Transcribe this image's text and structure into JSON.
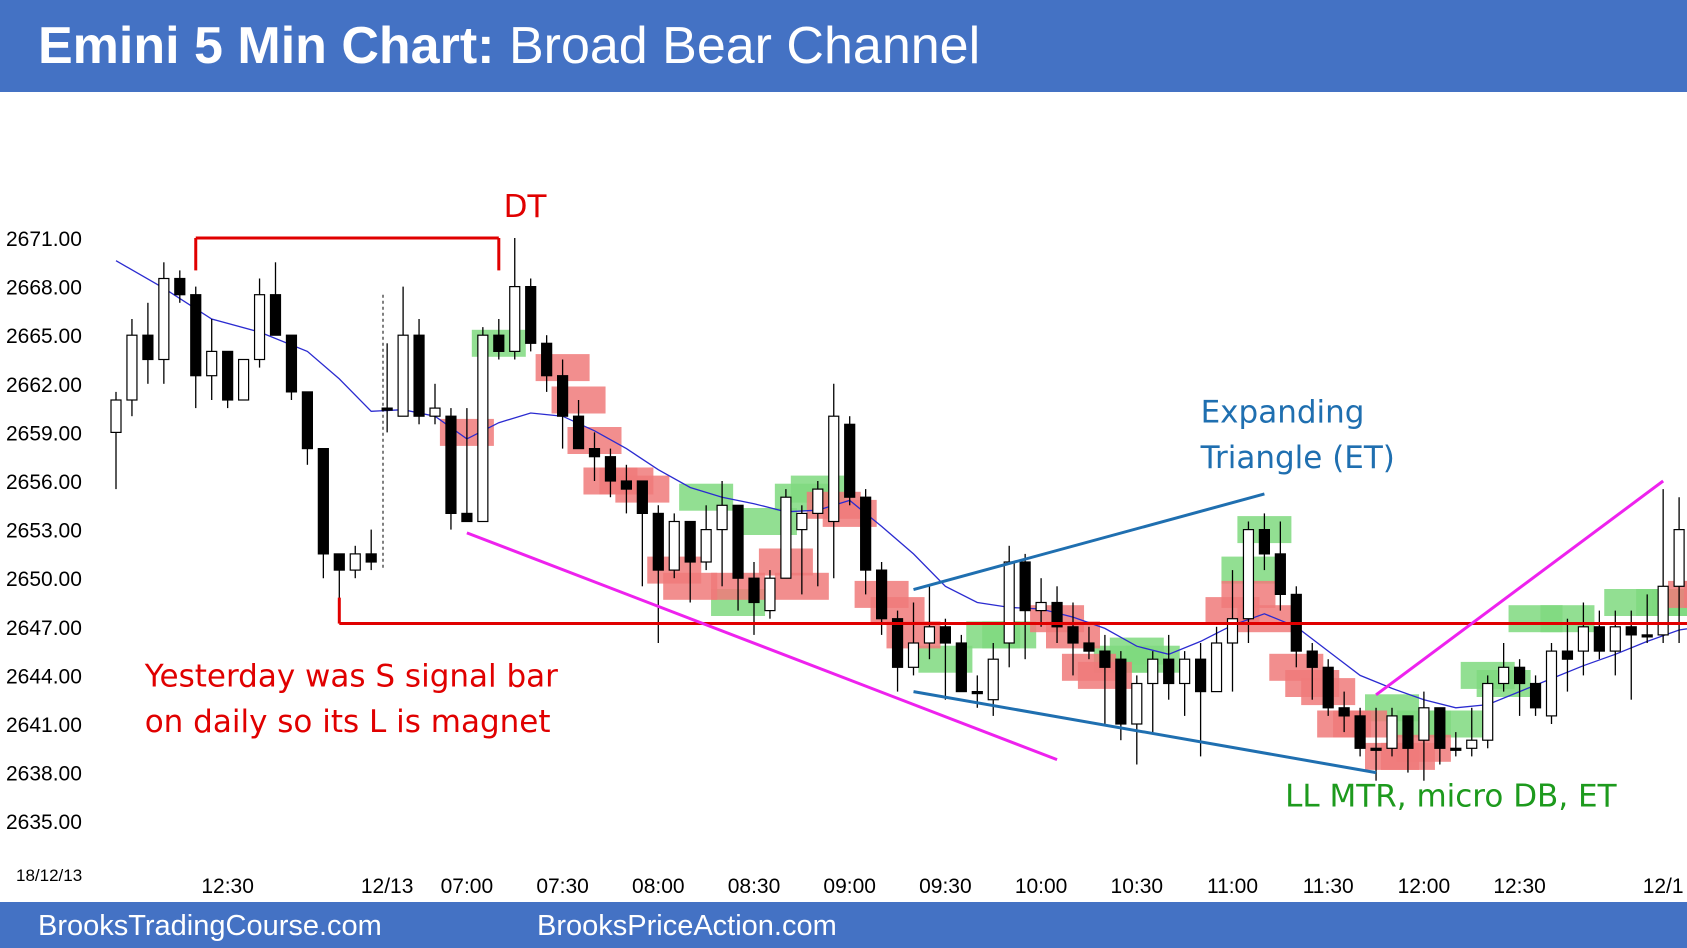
{
  "header": {
    "title_bold": "Emini 5 Min Chart:",
    "title_rest": "Broad Bear Channel"
  },
  "footer": {
    "left_link": "BrooksTradingCourse.com",
    "right_link": "BrooksPriceAction.com"
  },
  "colors": {
    "header_bg": "#4472c4",
    "bull_signal": "#7fd97f",
    "bear_signal": "#f07a7a",
    "support_line": "#e00000",
    "wedge_line": "#ee22ee",
    "triangle_line": "#1f6fb0",
    "ema_line": "#2b2bd0"
  },
  "chart_data": {
    "type": "candlestick",
    "title": "Emini 5 Min Chart: Broad Bear Channel",
    "date_stamp": "18/12/13",
    "ylim": [
      2633.5,
      2675.5
    ],
    "y_ticks": [
      "2671.00",
      "2668.00",
      "2665.00",
      "2662.00",
      "2659.00",
      "2656.00",
      "2653.00",
      "2650.00",
      "2647.00",
      "2644.00",
      "2641.00",
      "2638.00",
      "2635.00"
    ],
    "x_ticks": [
      {
        "bar": 7,
        "label": "12:30"
      },
      {
        "bar": 17,
        "label": "12/13"
      },
      {
        "bar": 22,
        "label": "07:00"
      },
      {
        "bar": 28,
        "label": "07:30"
      },
      {
        "bar": 34,
        "label": "08:00"
      },
      {
        "bar": 40,
        "label": "08:30"
      },
      {
        "bar": 46,
        "label": "09:00"
      },
      {
        "bar": 52,
        "label": "09:30"
      },
      {
        "bar": 58,
        "label": "10:00"
      },
      {
        "bar": 64,
        "label": "10:30"
      },
      {
        "bar": 70,
        "label": "11:00"
      },
      {
        "bar": 76,
        "label": "11:30"
      },
      {
        "bar": 82,
        "label": "12:00"
      },
      {
        "bar": 88,
        "label": "12:30"
      },
      {
        "bar": 97,
        "label": "12/1"
      }
    ],
    "candles": [
      [
        2659.0,
        2661.0,
        2655.5,
        2661.5
      ],
      [
        2661.0,
        2665.0,
        2660.0,
        2666.0
      ],
      [
        2665.0,
        2663.5,
        2662.0,
        2667.0
      ],
      [
        2663.5,
        2668.5,
        2662.0,
        2669.5
      ],
      [
        2668.5,
        2667.5,
        2667.0,
        2669.0
      ],
      [
        2667.5,
        2662.5,
        2660.5,
        2668.0
      ],
      [
        2662.5,
        2664.0,
        2661.0,
        2666.0
      ],
      [
        2664.0,
        2661.0,
        2660.5,
        2664.0
      ],
      [
        2661.0,
        2663.5,
        2661.0,
        2663.5
      ],
      [
        2663.5,
        2667.5,
        2663.0,
        2668.5
      ],
      [
        2667.5,
        2665.0,
        2665.0,
        2669.5
      ],
      [
        2665.0,
        2661.5,
        2661.0,
        2665.0
      ],
      [
        2661.5,
        2658.0,
        2657.0,
        2661.5
      ],
      [
        2658.0,
        2651.5,
        2650.0,
        2658.0
      ],
      [
        2651.5,
        2650.5,
        2647.5,
        2651.5
      ],
      [
        2650.5,
        2651.5,
        2650.0,
        2652.0
      ],
      [
        2651.5,
        2651.0,
        2650.5,
        2653.0
      ],
      [
        2660.5,
        2660.5,
        2659.0,
        2664.5
      ],
      [
        2660.0,
        2665.0,
        2660.0,
        2668.0
      ],
      [
        2665.0,
        2660.0,
        2659.5,
        2666.0
      ],
      [
        2660.0,
        2660.5,
        2659.5,
        2662.0
      ],
      [
        2660.0,
        2654.0,
        2653.0,
        2660.5
      ],
      [
        2654.0,
        2653.5,
        2653.5,
        2660.5
      ],
      [
        2653.5,
        2665.0,
        2653.5,
        2665.5
      ],
      [
        2665.0,
        2664.0,
        2663.5,
        2666.0
      ],
      [
        2664.0,
        2668.0,
        2663.5,
        2671.0
      ],
      [
        2668.0,
        2664.5,
        2664.0,
        2668.5
      ],
      [
        2664.5,
        2662.5,
        2661.5,
        2665.0
      ],
      [
        2662.5,
        2660.0,
        2658.0,
        2663.5
      ],
      [
        2660.0,
        2658.0,
        2658.0,
        2661.0
      ],
      [
        2658.0,
        2657.5,
        2656.0,
        2659.0
      ],
      [
        2657.5,
        2656.0,
        2655.0,
        2658.0
      ],
      [
        2656.0,
        2655.5,
        2654.0,
        2657.0
      ],
      [
        2656.0,
        2654.0,
        2649.5,
        2656.0
      ],
      [
        2654.0,
        2650.5,
        2646.0,
        2654.5
      ],
      [
        2650.5,
        2653.5,
        2650.0,
        2654.0
      ],
      [
        2653.5,
        2651.0,
        2648.5,
        2653.5
      ],
      [
        2651.0,
        2653.0,
        2650.5,
        2654.5
      ],
      [
        2653.0,
        2654.5,
        2649.5,
        2656.0
      ],
      [
        2654.5,
        2650.0,
        2648.0,
        2654.5
      ],
      [
        2650.0,
        2648.5,
        2646.5,
        2651.0
      ],
      [
        2648.0,
        2650.0,
        2647.5,
        2650.5
      ],
      [
        2650.0,
        2655.0,
        2650.0,
        2655.5
      ],
      [
        2653.0,
        2654.0,
        2649.0,
        2654.5
      ],
      [
        2654.0,
        2655.5,
        2649.5,
        2656.0
      ],
      [
        2653.5,
        2660.0,
        2650.0,
        2662.0
      ],
      [
        2659.5,
        2655.0,
        2654.5,
        2660.0
      ],
      [
        2655.0,
        2650.5,
        2649.0,
        2655.5
      ],
      [
        2650.5,
        2647.5,
        2646.5,
        2651.0
      ],
      [
        2647.5,
        2644.5,
        2643.0,
        2648.0
      ],
      [
        2644.5,
        2646.0,
        2644.0,
        2648.5
      ],
      [
        2646.0,
        2647.0,
        2645.0,
        2649.5
      ],
      [
        2647.0,
        2646.0,
        2642.5,
        2647.5
      ],
      [
        2646.0,
        2643.0,
        2643.0,
        2646.5
      ],
      [
        2643.0,
        2643.0,
        2642.0,
        2644.0
      ],
      [
        2642.5,
        2645.0,
        2641.5,
        2646.0
      ],
      [
        2646.0,
        2651.0,
        2644.5,
        2652.0
      ],
      [
        2651.0,
        2648.0,
        2645.0,
        2651.5
      ],
      [
        2648.0,
        2648.5,
        2647.0,
        2650.0
      ],
      [
        2648.5,
        2647.0,
        2646.0,
        2649.5
      ],
      [
        2647.0,
        2646.0,
        2644.0,
        2648.5
      ],
      [
        2646.0,
        2645.5,
        2645.0,
        2647.0
      ],
      [
        2645.5,
        2644.5,
        2641.0,
        2646.5
      ],
      [
        2645.0,
        2641.0,
        2640.0,
        2645.5
      ],
      [
        2641.0,
        2643.5,
        2638.5,
        2644.0
      ],
      [
        2643.5,
        2645.0,
        2640.5,
        2645.5
      ],
      [
        2645.0,
        2643.5,
        2642.5,
        2646.5
      ],
      [
        2643.5,
        2645.0,
        2641.5,
        2645.5
      ],
      [
        2645.0,
        2643.0,
        2639.0,
        2646.0
      ],
      [
        2643.0,
        2646.0,
        2643.0,
        2647.0
      ],
      [
        2646.0,
        2647.5,
        2643.0,
        2650.5
      ],
      [
        2647.5,
        2653.0,
        2646.0,
        2653.5
      ],
      [
        2653.0,
        2651.5,
        2650.5,
        2654.0
      ],
      [
        2651.5,
        2649.0,
        2648.0,
        2653.5
      ],
      [
        2649.0,
        2645.5,
        2644.5,
        2649.5
      ],
      [
        2645.5,
        2644.5,
        2642.5,
        2646.0
      ],
      [
        2644.5,
        2642.0,
        2641.5,
        2645.0
      ],
      [
        2642.0,
        2641.5,
        2640.5,
        2643.0
      ],
      [
        2641.5,
        2639.5,
        2639.0,
        2642.0
      ],
      [
        2639.5,
        2639.5,
        2637.5,
        2642.0
      ],
      [
        2639.5,
        2641.5,
        2639.0,
        2642.0
      ],
      [
        2641.5,
        2639.5,
        2638.0,
        2641.5
      ],
      [
        2640.0,
        2642.0,
        2637.5,
        2643.0
      ],
      [
        2642.0,
        2639.5,
        2638.5,
        2642.0
      ],
      [
        2639.5,
        2639.5,
        2639.0,
        2640.5
      ],
      [
        2639.5,
        2640.0,
        2639.0,
        2642.0
      ],
      [
        2640.0,
        2643.5,
        2639.5,
        2644.0
      ],
      [
        2643.5,
        2644.5,
        2643.0,
        2646.0
      ],
      [
        2644.5,
        2643.5,
        2641.5,
        2645.0
      ],
      [
        2643.5,
        2642.0,
        2641.5,
        2644.0
      ],
      [
        2641.5,
        2645.5,
        2641.0,
        2646.0
      ],
      [
        2645.5,
        2645.0,
        2643.0,
        2647.5
      ],
      [
        2645.5,
        2647.0,
        2644.0,
        2648.5
      ],
      [
        2647.0,
        2645.5,
        2645.0,
        2648.0
      ],
      [
        2645.5,
        2647.0,
        2644.0,
        2648.0
      ],
      [
        2647.0,
        2646.5,
        2642.5,
        2648.0
      ],
      [
        2646.5,
        2646.5,
        2646.0,
        2649.0
      ],
      [
        2646.5,
        2649.5,
        2646.0,
        2655.5
      ],
      [
        2649.5,
        2653.0,
        2646.0,
        2655.0
      ],
      [
        2653.0,
        2650.0,
        2649.5,
        2653.5
      ],
      [
        2650.0,
        2649.0,
        2647.5,
        2650.0
      ],
      [
        2648.5,
        2649.5,
        2648.0,
        2652.5
      ],
      [
        2648.0,
        2646.5,
        2646.0,
        2648.0
      ],
      [
        2647.5,
        2647.5,
        2647.0,
        2648.0
      ],
      [
        2647.0,
        2644.0,
        2643.5,
        2647.5
      ]
    ],
    "ema": [
      [
        0,
        2669.6
      ],
      [
        3,
        2667.9
      ],
      [
        6,
        2666.0
      ],
      [
        9,
        2665.2
      ],
      [
        12,
        2664.0
      ],
      [
        14,
        2662.3
      ],
      [
        16,
        2660.3
      ],
      [
        18,
        2660.4
      ],
      [
        20,
        2660.0
      ],
      [
        22,
        2658.6
      ],
      [
        24,
        2659.6
      ],
      [
        26,
        2660.2
      ],
      [
        28,
        2660.0
      ],
      [
        30,
        2659.1
      ],
      [
        32,
        2658.0
      ],
      [
        34,
        2656.7
      ],
      [
        36,
        2655.6
      ],
      [
        38,
        2655.0
      ],
      [
        40,
        2654.6
      ],
      [
        42,
        2654.1
      ],
      [
        44,
        2654.2
      ],
      [
        46,
        2654.8
      ],
      [
        48,
        2653.2
      ],
      [
        50,
        2651.5
      ],
      [
        52,
        2649.5
      ],
      [
        54,
        2648.5
      ],
      [
        56,
        2648.2
      ],
      [
        58,
        2648.1
      ],
      [
        60,
        2647.6
      ],
      [
        62,
        2646.9
      ],
      [
        64,
        2645.8
      ],
      [
        66,
        2645.3
      ],
      [
        68,
        2646.1
      ],
      [
        70,
        2647.1
      ],
      [
        72,
        2647.8
      ],
      [
        74,
        2647.0
      ],
      [
        76,
        2645.5
      ],
      [
        78,
        2644.0
      ],
      [
        80,
        2643.2
      ],
      [
        82,
        2642.5
      ],
      [
        84,
        2642.0
      ],
      [
        86,
        2642.2
      ],
      [
        88,
        2643.0
      ],
      [
        90,
        2643.8
      ],
      [
        92,
        2644.6
      ],
      [
        94,
        2645.3
      ],
      [
        96,
        2646.1
      ],
      [
        98,
        2646.8
      ],
      [
        100,
        2647.1
      ],
      [
        103,
        2647.1
      ]
    ],
    "bull_signals": [
      [
        24,
        2664.5
      ],
      [
        37,
        2655.0
      ],
      [
        39,
        2648.5
      ],
      [
        41,
        2653.5
      ],
      [
        43,
        2655.0
      ],
      [
        44,
        2655.5
      ],
      [
        52,
        2645.0
      ],
      [
        55,
        2646.5
      ],
      [
        56,
        2646.5
      ],
      [
        63,
        2645.0
      ],
      [
        64,
        2645.5
      ],
      [
        65,
        2645.0
      ],
      [
        71,
        2650.5
      ],
      [
        72,
        2653.0
      ],
      [
        80,
        2642.0
      ],
      [
        82,
        2641.0
      ],
      [
        84,
        2641.0
      ],
      [
        86,
        2644.0
      ],
      [
        87,
        2643.5
      ],
      [
        89,
        2647.5
      ],
      [
        91,
        2647.5
      ],
      [
        95,
        2648.5
      ],
      [
        97,
        2648.5
      ],
      [
        98,
        2648.5
      ]
    ],
    "bear_signals": [
      [
        22,
        2659.0
      ],
      [
        28,
        2663.0
      ],
      [
        29,
        2661.0
      ],
      [
        30,
        2658.5
      ],
      [
        31,
        2656.0
      ],
      [
        32,
        2656.0
      ],
      [
        33,
        2655.5
      ],
      [
        35,
        2650.5
      ],
      [
        36,
        2649.5
      ],
      [
        39,
        2649.5
      ],
      [
        42,
        2651.0
      ],
      [
        43,
        2649.5
      ],
      [
        45,
        2654.5
      ],
      [
        46,
        2654.0
      ],
      [
        48,
        2649.0
      ],
      [
        49,
        2648.0
      ],
      [
        50,
        2646.5
      ],
      [
        59,
        2647.5
      ],
      [
        60,
        2646.5
      ],
      [
        61,
        2644.5
      ],
      [
        62,
        2644.0
      ],
      [
        70,
        2648.0
      ],
      [
        71,
        2649.0
      ],
      [
        72,
        2647.5
      ],
      [
        74,
        2644.5
      ],
      [
        75,
        2643.5
      ],
      [
        76,
        2643.0
      ],
      [
        77,
        2641.0
      ],
      [
        78,
        2641.0
      ],
      [
        80,
        2639.0
      ],
      [
        81,
        2639.0
      ],
      [
        82,
        2639.5
      ],
      [
        99,
        2649.0
      ],
      [
        100,
        2649.0
      ]
    ],
    "lines": [
      {
        "name": "double-top-line",
        "color": "#e00000",
        "from": [
          5,
          2671.0
        ],
        "to": [
          24,
          2671.0
        ]
      },
      {
        "name": "yesterday-low-line",
        "color": "#e00000",
        "from": [
          14,
          2647.2
        ],
        "to": [
          104,
          2647.2
        ]
      },
      {
        "name": "wedge-lower-line",
        "color": "#ee22ee",
        "from": [
          22,
          2652.8
        ],
        "to": [
          59,
          2638.8
        ]
      },
      {
        "name": "triangle-upper-line",
        "color": "#1f6fb0",
        "from": [
          50,
          2649.3
        ],
        "to": [
          72,
          2655.2
        ]
      },
      {
        "name": "triangle-lower-line",
        "color": "#1f6fb0",
        "from": [
          50,
          2643.0
        ],
        "to": [
          79,
          2638.0
        ]
      },
      {
        "name": "bull-trend-line",
        "color": "#ee22ee",
        "from": [
          79,
          2642.8
        ],
        "to": [
          97,
          2656.0
        ]
      }
    ],
    "annotations": [
      {
        "text": "DT",
        "color": "#e00000",
        "at_bar": 24.3,
        "price": 2672.3
      },
      {
        "text": "Expanding",
        "color": "#1f6fb0",
        "at_bar": 68.0,
        "price": 2659.6
      },
      {
        "text": "Triangle (ET)",
        "color": "#1f6fb0",
        "at_bar": 68.0,
        "price": 2656.8
      },
      {
        "text": "Yesterday was S signal bar",
        "color": "#e00000",
        "at_bar": 1.8,
        "price": 2643.3
      },
      {
        "text": "on daily so its L is magnet",
        "color": "#e00000",
        "at_bar": 1.8,
        "price": 2640.5
      },
      {
        "text": "LL MTR, micro DB, ET",
        "color": "#1d9a1d",
        "at_bar": 73.3,
        "price": 2635.9
      }
    ]
  }
}
